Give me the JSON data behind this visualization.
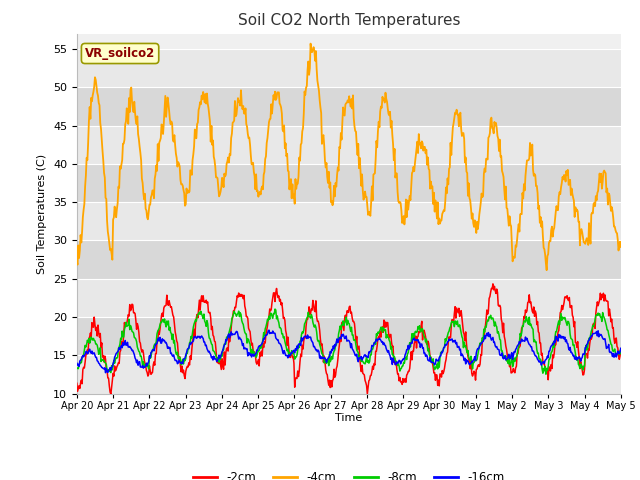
{
  "title": "Soil CO2 North Temperatures",
  "ylabel": "Soil Temperatures (C)",
  "xlabel": "Time",
  "ylim": [
    10,
    57
  ],
  "yticks": [
    10,
    15,
    20,
    25,
    30,
    35,
    40,
    45,
    50,
    55
  ],
  "background_color": "#ffffff",
  "plot_bg_color": "#f0f0f0",
  "band_color_light": "#e8e8e8",
  "band_color_white": "#d8d8d8",
  "grid_color": "#ffffff",
  "annotation_label": "VR_soilco2",
  "annotation_color": "#8B0000",
  "annotation_bg": "#ffffcc",
  "annotation_edge": "#999900",
  "line_colors": {
    "-2cm": "#ff0000",
    "-4cm": "#ffa500",
    "-8cm": "#00cc00",
    "-16cm": "#0000ff"
  },
  "legend_labels": [
    "-2cm",
    "-4cm",
    "-8cm",
    "-16cm"
  ],
  "num_days": 15,
  "points_per_day": 48,
  "day_peaks_orange": [
    50.5,
    48.5,
    47.5,
    49.0,
    48.5,
    49.0,
    54.5,
    48.5,
    49.0,
    43.0,
    46.5,
    45.5,
    41.5,
    38.5,
    38.5
  ],
  "day_troughs_orange": [
    27.0,
    33.0,
    35.0,
    36.0,
    37.5,
    36.0,
    37.0,
    35.0,
    33.0,
    33.0,
    32.0,
    31.5,
    27.0,
    30.0,
    29.5
  ],
  "day_peaks_red": [
    19.0,
    21.0,
    22.0,
    22.5,
    23.0,
    23.0,
    21.5,
    21.0,
    19.0,
    18.5,
    21.0,
    24.0,
    22.0,
    22.5,
    23.0
  ],
  "day_troughs_red": [
    10.5,
    12.5,
    12.5,
    13.5,
    14.0,
    14.5,
    11.5,
    11.5,
    11.5,
    11.5,
    12.0,
    13.0,
    12.5,
    13.0,
    15.0
  ],
  "day_peaks_green": [
    17.0,
    19.0,
    19.5,
    20.5,
    20.5,
    20.5,
    20.0,
    19.5,
    18.5,
    18.5,
    19.5,
    20.0,
    19.5,
    20.0,
    20.5
  ],
  "day_troughs_green": [
    13.0,
    13.5,
    14.0,
    14.5,
    15.0,
    15.0,
    14.0,
    14.0,
    13.5,
    13.5,
    14.0,
    14.0,
    13.0,
    13.5,
    15.0
  ],
  "day_peaks_blue": [
    15.5,
    16.5,
    17.0,
    17.5,
    18.0,
    18.0,
    17.5,
    17.5,
    17.0,
    17.0,
    17.0,
    17.5,
    17.0,
    17.5,
    18.0
  ],
  "day_troughs_blue": [
    13.0,
    13.5,
    14.0,
    14.5,
    15.0,
    15.0,
    14.5,
    14.5,
    14.0,
    14.0,
    14.0,
    14.5,
    14.0,
    14.5,
    15.0
  ]
}
